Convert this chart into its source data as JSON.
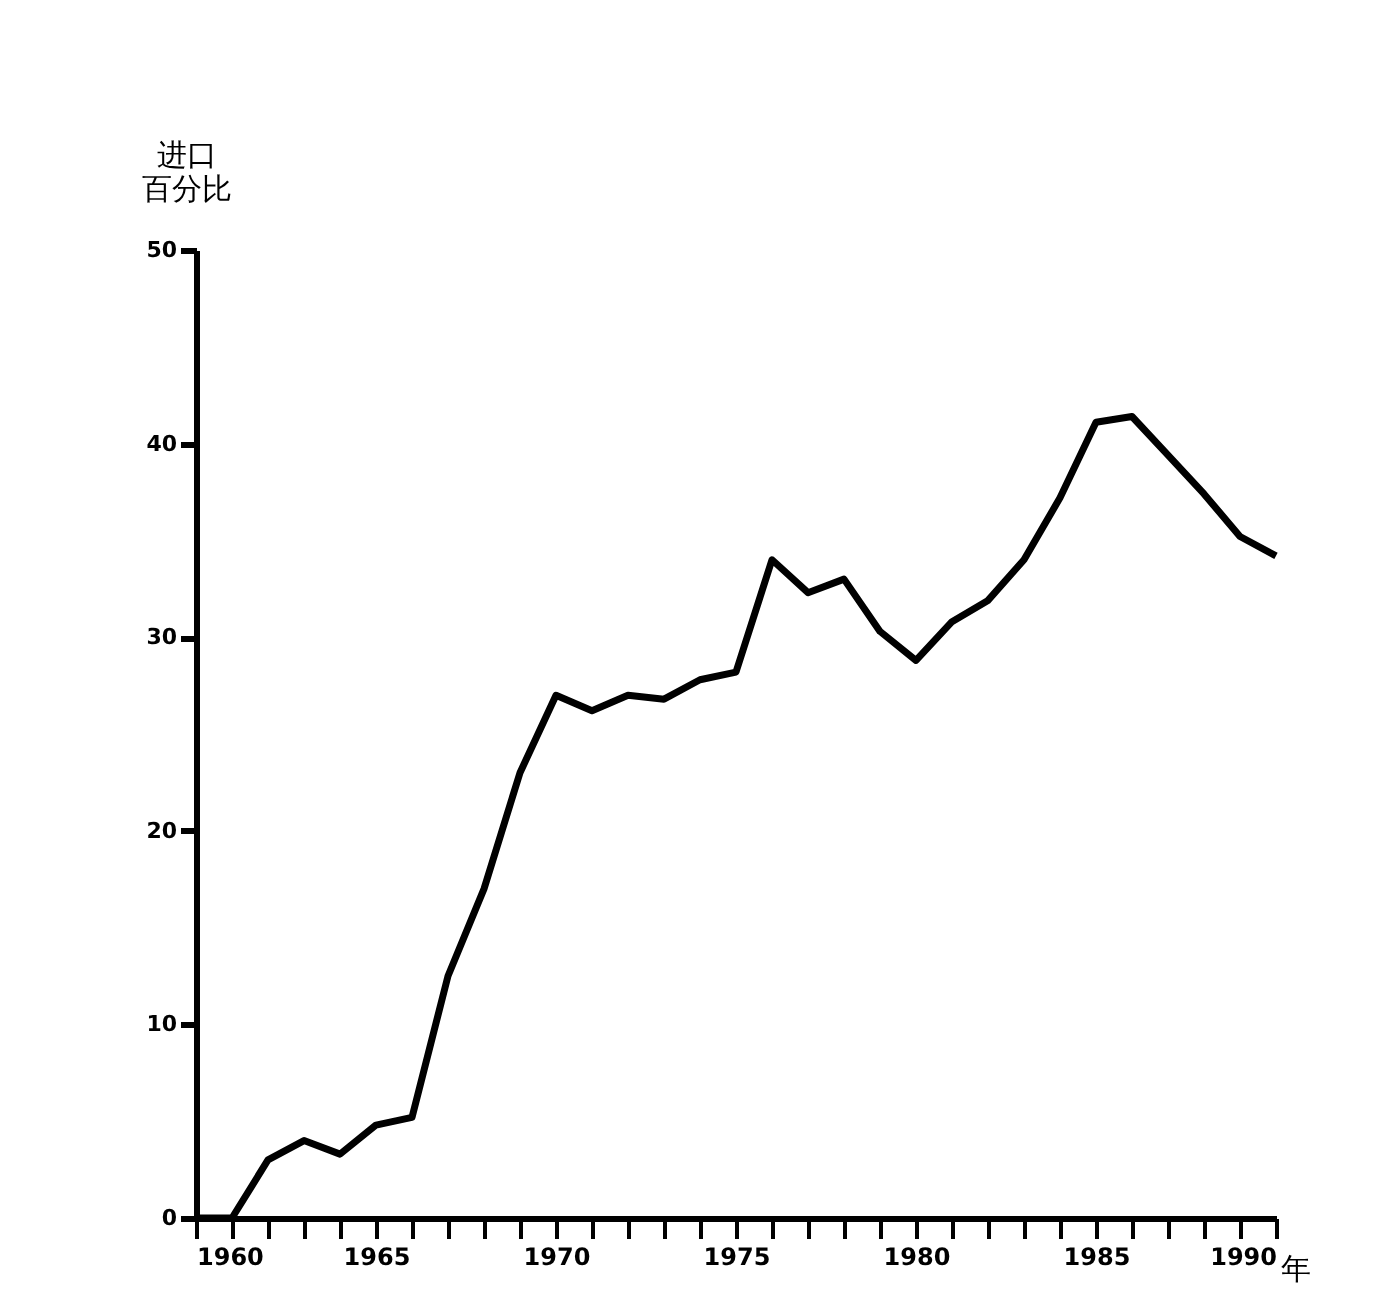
{
  "chart_data": {
    "type": "line",
    "xlabel": "年",
    "ylabel": "进口百分比",
    "x": [
      1960,
      1961,
      1962,
      1963,
      1964,
      1965,
      1966,
      1967,
      1968,
      1969,
      1970,
      1971,
      1972,
      1973,
      1974,
      1975,
      1976,
      1977,
      1978,
      1979,
      1980,
      1981,
      1982,
      1983,
      1984,
      1985,
      1986,
      1987,
      1988,
      1989,
      1990
    ],
    "series": [
      {
        "color": "#000000",
        "values": [
          0,
          0,
          3,
          4,
          3.3,
          4.8,
          5.2,
          12.5,
          17,
          23,
          27,
          26.2,
          27,
          26.8,
          27.8,
          28.2,
          34,
          32.3,
          33,
          30.3,
          28.8,
          30.8,
          31.9,
          34,
          37.2,
          41.1,
          41.4,
          39.4,
          37.4,
          35.2,
          34.2
        ]
      }
    ],
    "xlim": [
      1960,
      1990
    ],
    "xticks": [
      1960,
      {
        "value": 1961,
        "label": null
      },
      {
        "value": 1962,
        "label": null
      },
      {
        "value": 1963,
        "label": null
      },
      {
        "value": 1964,
        "label": null
      },
      1965,
      {
        "value": 1966,
        "label": null
      },
      {
        "value": 1967,
        "label": null
      },
      {
        "value": 1968,
        "label": null
      },
      {
        "value": 1969,
        "label": null
      },
      1970,
      {
        "value": 1971,
        "label": null
      },
      {
        "value": 1972,
        "label": null
      },
      {
        "value": 1973,
        "label": null
      },
      {
        "value": 1974,
        "label": null
      },
      1975,
      {
        "value": 1976,
        "label": null
      },
      {
        "value": 1977,
        "label": null
      },
      {
        "value": 1978,
        "label": null
      },
      {
        "value": 1979,
        "label": null
      },
      1980,
      {
        "value": 1981,
        "label": null
      },
      {
        "value": 1982,
        "label": null
      },
      {
        "value": 1983,
        "label": null
      },
      {
        "value": 1984,
        "label": null
      },
      1985,
      {
        "value": 1986,
        "label": null
      },
      {
        "value": 1987,
        "label": null
      },
      {
        "value": 1988,
        "label": null
      },
      {
        "value": 1989,
        "label": null
      },
      1990
    ],
    "ylim": [
      0,
      50
    ],
    "yticks": [
      0,
      10,
      20,
      30,
      40,
      50
    ],
    "grid": false,
    "marker": "none",
    "line_style": "solid"
  }
}
